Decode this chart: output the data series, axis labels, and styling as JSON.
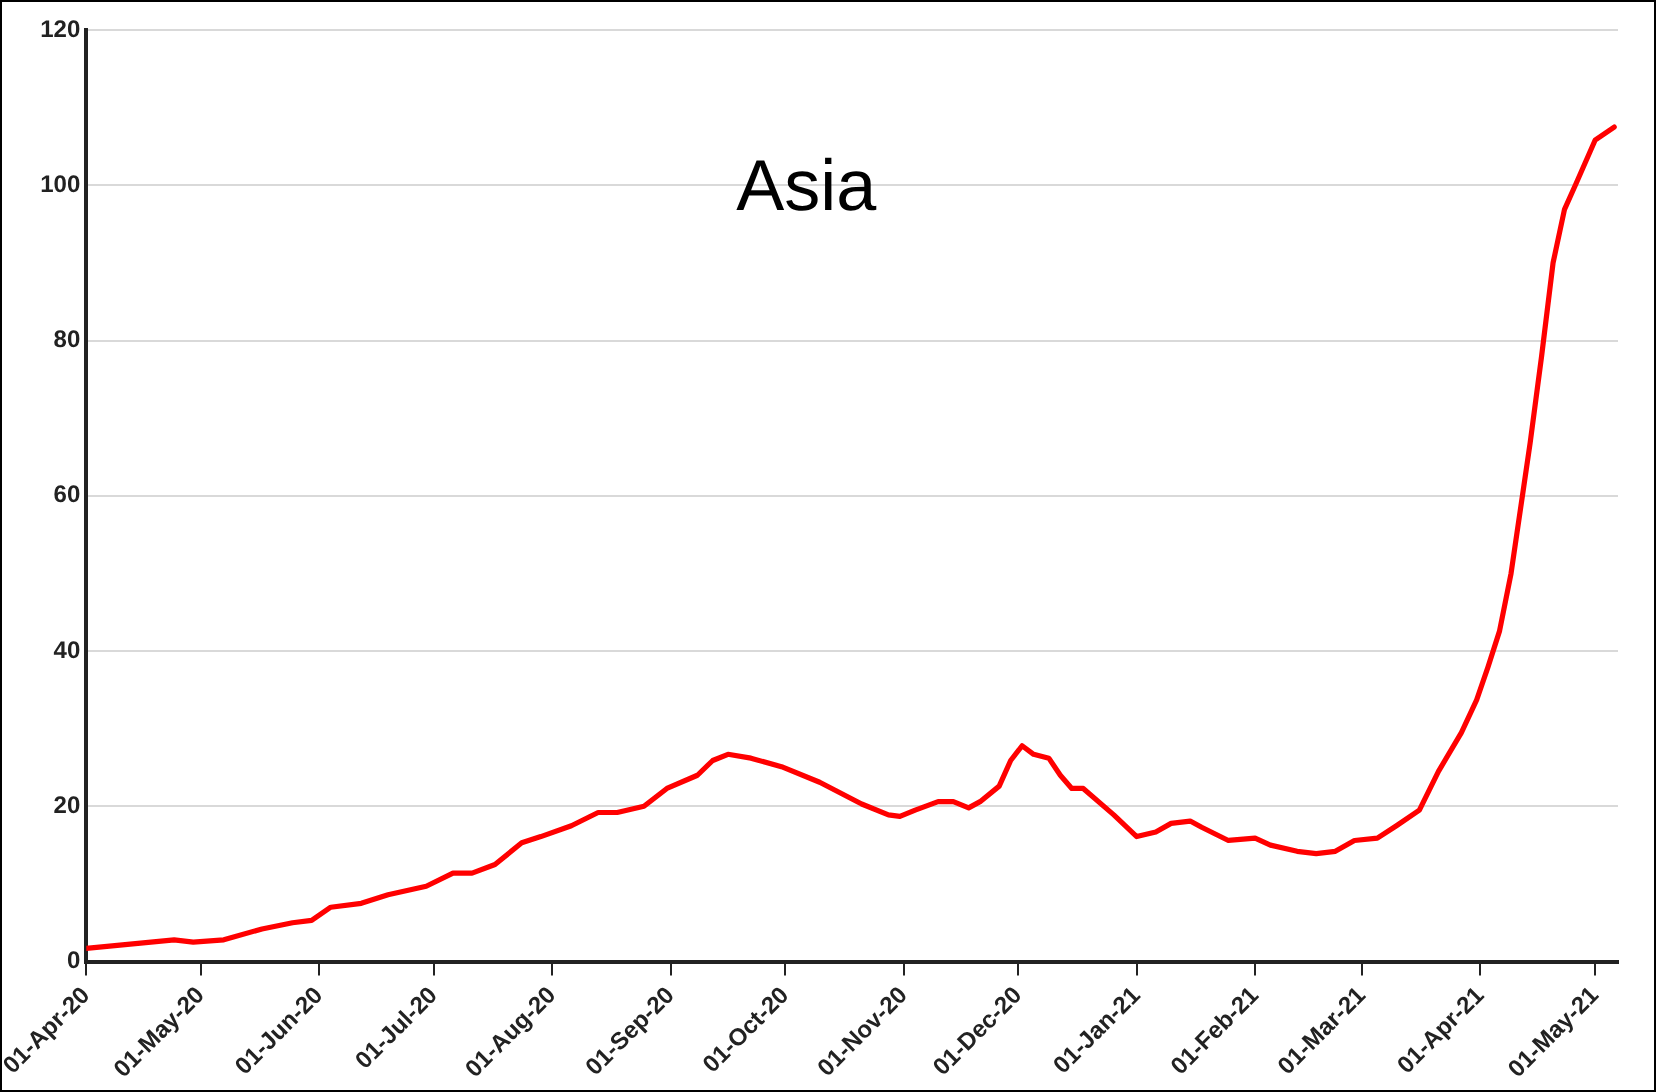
{
  "chart_data": {
    "type": "line",
    "title": "Asia",
    "grid": "y",
    "legend": false,
    "marker": "none",
    "line_style": "solid",
    "x": [
      "2020-04-01",
      "2020-04-24",
      "2020-04-29",
      "2020-05-07",
      "2020-05-17",
      "2020-05-25",
      "2020-05-30",
      "2020-06-04",
      "2020-06-12",
      "2020-06-19",
      "2020-06-29",
      "2020-07-06",
      "2020-07-11",
      "2020-07-17",
      "2020-07-24",
      "2020-07-29",
      "2020-08-06",
      "2020-08-13",
      "2020-08-18",
      "2020-08-25",
      "2020-08-31",
      "2020-09-08",
      "2020-09-12",
      "2020-09-16",
      "2020-09-22",
      "2020-09-30",
      "2020-10-10",
      "2020-10-21",
      "2020-10-28",
      "2020-10-31",
      "2020-11-04",
      "2020-11-10",
      "2020-11-14",
      "2020-11-18",
      "2020-11-21",
      "2020-11-26",
      "2020-11-29",
      "2020-12-02",
      "2020-12-05",
      "2020-12-09",
      "2020-12-12",
      "2020-12-15",
      "2020-12-18",
      "2020-12-26",
      "2021-01-01",
      "2021-01-06",
      "2021-01-10",
      "2021-01-15",
      "2021-01-18",
      "2021-01-25",
      "2021-02-01",
      "2021-02-05",
      "2021-02-12",
      "2021-02-17",
      "2021-02-22",
      "2021-02-27",
      "2021-03-05",
      "2021-03-10",
      "2021-03-16",
      "2021-03-21",
      "2021-03-27",
      "2021-03-31",
      "2021-04-03",
      "2021-04-06",
      "2021-04-09",
      "2021-04-14",
      "2021-04-17",
      "2021-04-20",
      "2021-04-23",
      "2021-04-26",
      "2021-05-01",
      "2021-05-06"
    ],
    "series": [
      {
        "color": "#ff0000",
        "values": [
          1.7,
          2.8,
          2.5,
          2.8,
          4.2,
          5.0,
          5.3,
          7.0,
          7.5,
          8.6,
          9.7,
          11.4,
          11.4,
          12.5,
          15.3,
          16.1,
          17.5,
          19.2,
          19.2,
          20.0,
          22.3,
          24.0,
          25.9,
          26.7,
          26.2,
          25.1,
          23.1,
          20.3,
          18.9,
          18.7,
          19.5,
          20.6,
          20.6,
          19.8,
          20.6,
          22.6,
          25.9,
          27.8,
          26.7,
          26.2,
          24.0,
          22.3,
          22.3,
          18.9,
          16.1,
          16.7,
          17.8,
          18.1,
          17.3,
          15.6,
          15.9,
          15.0,
          14.2,
          13.9,
          14.2,
          15.6,
          15.9,
          17.5,
          19.5,
          24.5,
          29.5,
          33.7,
          38.0,
          42.6,
          50.0,
          66.8,
          78.0,
          90.0,
          96.9,
          100.2,
          105.8,
          107.5
        ]
      }
    ],
    "xlim": [
      "2020-04-01",
      "2021-05-07"
    ],
    "xticks": [
      {
        "value": "2020-04-01",
        "label": "01-Apr-20"
      },
      {
        "value": "2020-05-01",
        "label": "01-May-20"
      },
      {
        "value": "2020-06-01",
        "label": "01-Jun-20"
      },
      {
        "value": "2020-07-01",
        "label": "01-Jul-20"
      },
      {
        "value": "2020-08-01",
        "label": "01-Aug-20"
      },
      {
        "value": "2020-09-01",
        "label": "01-Sep-20"
      },
      {
        "value": "2020-10-01",
        "label": "01-Oct-20"
      },
      {
        "value": "2020-11-01",
        "label": "01-Nov-20"
      },
      {
        "value": "2020-12-01",
        "label": "01-Dec-20"
      },
      {
        "value": "2021-01-01",
        "label": "01-Jan-21"
      },
      {
        "value": "2021-02-01",
        "label": "01-Feb-21"
      },
      {
        "value": "2021-03-01",
        "label": "01-Mar-21"
      },
      {
        "value": "2021-04-01",
        "label": "01-Apr-21"
      },
      {
        "value": "2021-05-01",
        "label": "01-May-21"
      }
    ],
    "ylim": [
      0,
      120
    ],
    "yticks": [
      0,
      20,
      40,
      60,
      80,
      100,
      120
    ]
  }
}
